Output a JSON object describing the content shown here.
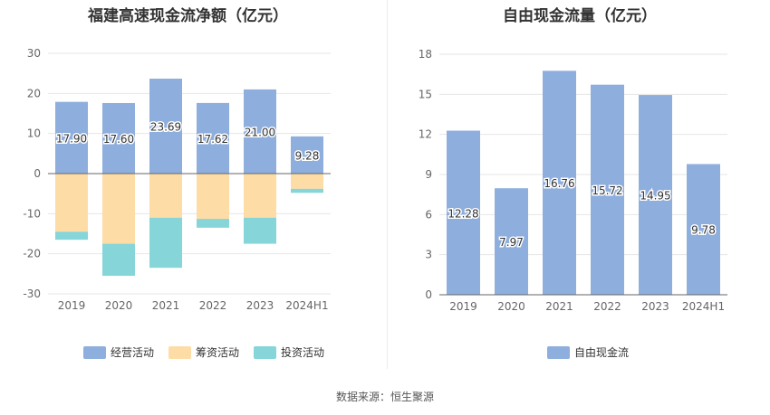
{
  "source_text": "数据来源：恒生聚源",
  "chart_data": [
    {
      "type": "bar",
      "stacked": true,
      "title": "福建高速现金流净额（亿元）",
      "categories": [
        "2019",
        "2020",
        "2021",
        "2022",
        "2023",
        "2024H1"
      ],
      "ylim": [
        -30,
        30
      ],
      "yticks": [
        30,
        20,
        10,
        0,
        -10,
        -20,
        -30
      ],
      "grid": true,
      "legend_position": "bottom",
      "series": [
        {
          "name": "经营活动",
          "color": "#8eaedd",
          "values": [
            17.9,
            17.6,
            23.69,
            17.62,
            21.0,
            9.28
          ],
          "show_labels": true
        },
        {
          "name": "筹资活动",
          "color": "#fedca5",
          "values": [
            -14.5,
            -17.5,
            -11.0,
            -11.3,
            -11.0,
            -3.8
          ],
          "show_labels": false
        },
        {
          "name": "投资活动",
          "color": "#86d5d8",
          "values": [
            -2.0,
            -8.0,
            -12.5,
            -2.2,
            -6.5,
            -1.0
          ],
          "show_labels": false
        }
      ],
      "value_labels": [
        "17.90",
        "17.60",
        "23.69",
        "17.62",
        "21.00",
        "9.28"
      ]
    },
    {
      "type": "bar",
      "title": "自由现金流量（亿元）",
      "categories": [
        "2019",
        "2020",
        "2021",
        "2022",
        "2023",
        "2024H1"
      ],
      "ylim": [
        0,
        18
      ],
      "yticks": [
        18,
        15,
        12,
        9,
        6,
        3,
        0
      ],
      "grid": true,
      "legend_position": "bottom",
      "series": [
        {
          "name": "自由现金流",
          "color": "#8eaedd",
          "values": [
            12.28,
            7.97,
            16.76,
            15.72,
            14.95,
            9.78
          ],
          "show_labels": true
        }
      ],
      "value_labels": [
        "12.28",
        "7.97",
        "16.76",
        "15.72",
        "14.95",
        "9.78"
      ]
    }
  ]
}
